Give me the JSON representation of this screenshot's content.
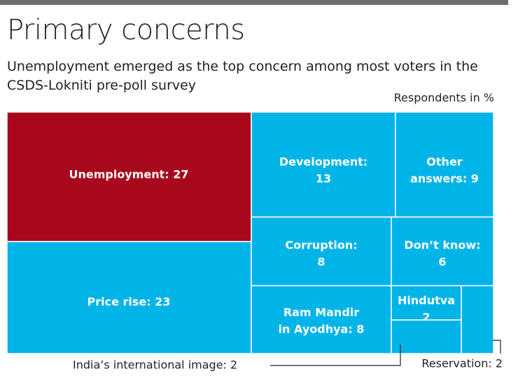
{
  "header": {
    "title": "Primary concerns",
    "subtitle": "Unemployment emerged as the top concern among most voters in the CSDS-Lokniti pre-poll survey",
    "unit": "Respondents in %"
  },
  "colors": {
    "highlight": "#a8081c",
    "default": "#00b4e8",
    "border": "#ffffff",
    "topbar": "#6d6e70"
  },
  "chart_data": {
    "type": "treemap",
    "title": "Primary concerns",
    "unit": "Respondents in %",
    "items": [
      {
        "name": "Unemployment",
        "value": 27,
        "label_lines": [
          "Unemployment: 27"
        ],
        "highlight": true
      },
      {
        "name": "Price rise",
        "value": 23,
        "label_lines": [
          "Price rise: 23"
        ]
      },
      {
        "name": "Development",
        "value": 13,
        "label_lines": [
          "Development:",
          "13"
        ]
      },
      {
        "name": "Other answers",
        "value": 9,
        "label_lines": [
          "Other",
          "answers: 9"
        ]
      },
      {
        "name": "Corruption",
        "value": 8,
        "label_lines": [
          "Corruption:",
          "8"
        ]
      },
      {
        "name": "Don't know",
        "value": 6,
        "label_lines": [
          "Don’t know:",
          "6"
        ]
      },
      {
        "name": "Ram Mandir in Ayodhya",
        "value": 8,
        "label_lines": [
          "Ram Mandir",
          "in Ayodhya: 8"
        ]
      },
      {
        "name": "Hindutva",
        "value": 2,
        "label_lines": [
          "Hindutva",
          "2"
        ]
      },
      {
        "name": "India's international image",
        "value": 2,
        "callout": "India’s international image: 2"
      },
      {
        "name": "Reservation",
        "value": 2,
        "callout": "Reservation: 2"
      }
    ]
  }
}
